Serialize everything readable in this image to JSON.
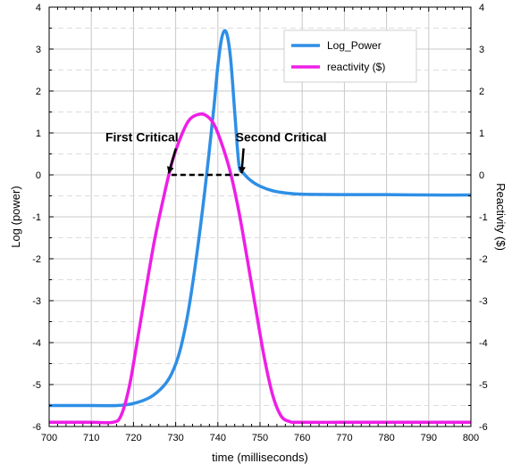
{
  "chart_data": {
    "type": "line",
    "xlabel": "time (milliseconds)",
    "ylabel": "Log (power)",
    "y2label": "Reactivity ($)",
    "xlim": [
      700,
      800
    ],
    "ylim": [
      -6,
      4
    ],
    "y2lim": [
      -6,
      4
    ],
    "xticks": [
      "700",
      "710",
      "720",
      "730",
      "740",
      "750",
      "760",
      "770",
      "780",
      "790",
      "800"
    ],
    "yticks": [
      "-6",
      "-5",
      "-4",
      "-3",
      "-2",
      "-1",
      "0",
      "1",
      "2",
      "3",
      "4"
    ],
    "y2ticks": [
      "-6",
      "-5",
      "-4",
      "-3",
      "-2",
      "-1",
      "0",
      "1",
      "2",
      "3",
      "4"
    ],
    "grid": true,
    "legend_position": "top-right",
    "series": [
      {
        "name": "Log_Power",
        "color": "#2e8fe6",
        "axis": "left",
        "x": [
          700,
          710,
          716,
          720,
          724,
          727,
          729,
          731,
          733,
          735,
          737,
          739,
          740,
          741,
          742,
          743,
          744,
          745,
          746,
          748,
          750,
          753,
          756,
          760,
          770,
          780,
          790,
          800
        ],
        "y": [
          -5.5,
          -5.5,
          -5.5,
          -5.45,
          -5.3,
          -5.05,
          -4.75,
          -4.2,
          -3.25,
          -1.9,
          -0.3,
          1.55,
          2.6,
          3.3,
          3.4,
          2.8,
          1.5,
          0.25,
          0.05,
          -0.15,
          -0.27,
          -0.38,
          -0.43,
          -0.46,
          -0.47,
          -0.47,
          -0.48,
          -0.48
        ]
      },
      {
        "name": "reactivity ($)",
        "color": "#ee1ee6",
        "axis": "right",
        "x": [
          700,
          710,
          715,
          717,
          719,
          721,
          723,
          725,
          727,
          729,
          731,
          733,
          735,
          737,
          739,
          741,
          743,
          745,
          747,
          749,
          751,
          753,
          755,
          757,
          759,
          770,
          780,
          790,
          800
        ],
        "y": [
          -5.9,
          -5.9,
          -5.9,
          -5.75,
          -5.05,
          -3.9,
          -2.7,
          -1.55,
          -0.6,
          0.25,
          0.85,
          1.28,
          1.43,
          1.43,
          1.22,
          0.72,
          0.05,
          -0.88,
          -2.02,
          -3.2,
          -4.35,
          -5.25,
          -5.75,
          -5.88,
          -5.9,
          -5.9,
          -5.9,
          -5.9,
          -5.9
        ]
      }
    ],
    "critical_line": {
      "x": [
        729,
        745
      ],
      "y": 0
    },
    "annotations": [
      {
        "text": "First Critical",
        "x": 722,
        "y": 0.8,
        "target_x": 729,
        "target_y": 0
      },
      {
        "text": "Second Critical",
        "x": 755,
        "y": 0.8,
        "target_x": 745,
        "target_y": 0
      }
    ]
  }
}
